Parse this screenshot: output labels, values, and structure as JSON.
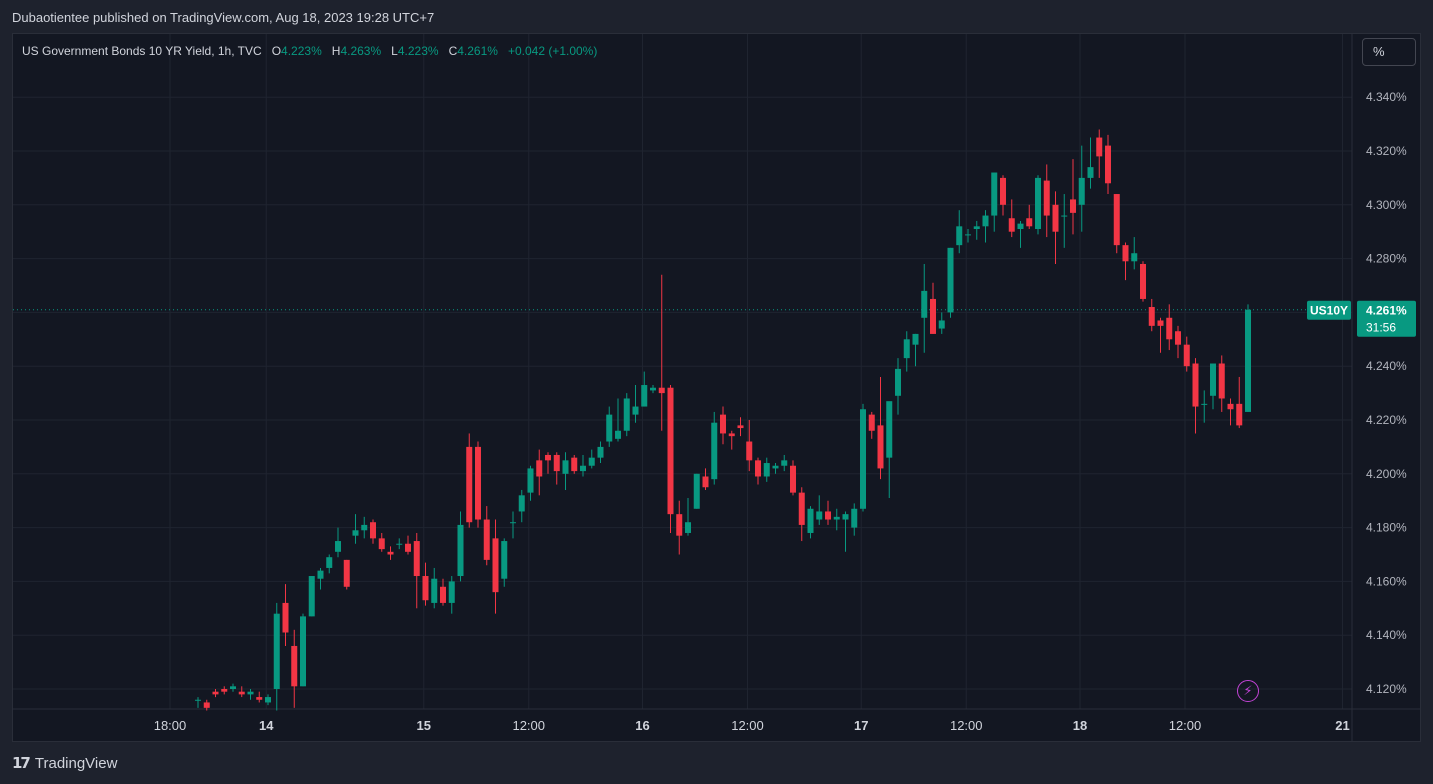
{
  "header": {
    "published": "Dubaotientee published on TradingView.com, Aug 18, 2023 19:28 UTC+7"
  },
  "legend": {
    "symbol_desc": "US Government Bonds 10 YR Yield, 1h, TVC",
    "o_label": "O",
    "o_value": "4.223%",
    "h_label": "H",
    "h_value": "4.263%",
    "l_label": "L",
    "l_value": "4.223%",
    "c_label": "C",
    "c_value": "4.261%",
    "change": "+0.042 (+1.00%)"
  },
  "unit_button": "%",
  "price_tag": {
    "symbol": "US10Y",
    "price": "4.261%",
    "countdown": "31:56"
  },
  "footer": {
    "brand": "TradingView"
  },
  "colors": {
    "up": "#089981",
    "down": "#f23645",
    "background": "#131722",
    "grid": "#1f2430"
  },
  "chart_data": {
    "type": "candlestick",
    "ylim": [
      4.11,
      4.35
    ],
    "y_ticks": [
      "4.120%",
      "4.140%",
      "4.160%",
      "4.180%",
      "4.200%",
      "4.220%",
      "4.240%",
      "4.260%",
      "4.280%",
      "4.300%",
      "4.320%",
      "4.340%"
    ],
    "x_ticks": [
      {
        "label": "18:00",
        "bold": false,
        "idx": 8
      },
      {
        "label": "14",
        "bold": true,
        "idx": 19
      },
      {
        "label": "15",
        "bold": true,
        "idx": 37
      },
      {
        "label": "12:00",
        "bold": false,
        "idx": 49
      },
      {
        "label": "16",
        "bold": true,
        "idx": 62
      },
      {
        "label": "12:00",
        "bold": false,
        "idx": 74
      },
      {
        "label": "17",
        "bold": true,
        "idx": 87
      },
      {
        "label": "12:00",
        "bold": false,
        "idx": 99
      },
      {
        "label": "18",
        "bold": true,
        "idx": 112
      },
      {
        "label": "12:00",
        "bold": false,
        "idx": 124
      },
      {
        "label": "21",
        "bold": true,
        "idx": 142
      }
    ],
    "last_price": 4.261,
    "candles": [
      [
        4.116,
        4.117,
        4.113,
        4.116
      ],
      [
        4.115,
        4.116,
        4.112,
        4.113
      ],
      [
        4.119,
        4.12,
        4.117,
        4.118
      ],
      [
        4.12,
        4.121,
        4.118,
        4.119
      ],
      [
        4.12,
        4.122,
        4.119,
        4.121
      ],
      [
        4.119,
        4.121,
        4.117,
        4.118
      ],
      [
        4.118,
        4.12,
        4.116,
        4.119
      ],
      [
        4.117,
        4.119,
        4.115,
        4.116
      ],
      [
        4.115,
        4.118,
        4.114,
        4.117
      ],
      [
        4.12,
        4.152,
        4.112,
        4.148
      ],
      [
        4.152,
        4.159,
        4.136,
        4.141
      ],
      [
        4.136,
        4.142,
        4.113,
        4.121
      ],
      [
        4.121,
        4.148,
        4.121,
        4.147
      ],
      [
        4.147,
        4.162,
        4.147,
        4.162
      ],
      [
        4.161,
        4.165,
        4.157,
        4.164
      ],
      [
        4.165,
        4.17,
        4.163,
        4.169
      ],
      [
        4.171,
        4.18,
        4.169,
        4.175
      ],
      [
        4.168,
        4.168,
        4.157,
        4.158
      ],
      [
        4.177,
        4.185,
        4.174,
        4.179
      ],
      [
        4.179,
        4.184,
        4.176,
        4.181
      ],
      [
        4.182,
        4.183,
        4.174,
        4.176
      ],
      [
        4.176,
        4.178,
        4.171,
        4.172
      ],
      [
        4.171,
        4.173,
        4.168,
        4.17
      ],
      [
        4.174,
        4.176,
        4.172,
        4.174
      ],
      [
        4.174,
        4.177,
        4.17,
        4.171
      ],
      [
        4.175,
        4.178,
        4.15,
        4.162
      ],
      [
        4.162,
        4.167,
        4.151,
        4.153
      ],
      [
        4.152,
        4.165,
        4.15,
        4.161
      ],
      [
        4.158,
        4.161,
        4.151,
        4.152
      ],
      [
        4.152,
        4.162,
        4.148,
        4.16
      ],
      [
        4.162,
        4.186,
        4.16,
        4.181
      ],
      [
        4.21,
        4.215,
        4.18,
        4.182
      ],
      [
        4.21,
        4.212,
        4.18,
        4.183
      ],
      [
        4.183,
        4.188,
        4.166,
        4.168
      ],
      [
        4.176,
        4.183,
        4.148,
        4.156
      ],
      [
        4.161,
        4.176,
        4.158,
        4.175
      ],
      [
        4.182,
        4.186,
        4.176,
        4.182
      ],
      [
        4.186,
        4.194,
        4.182,
        4.192
      ],
      [
        4.193,
        4.203,
        4.19,
        4.202
      ],
      [
        4.205,
        4.209,
        4.192,
        4.199
      ],
      [
        4.207,
        4.208,
        4.2,
        4.205
      ],
      [
        4.207,
        4.208,
        4.196,
        4.201
      ],
      [
        4.2,
        4.208,
        4.194,
        4.205
      ],
      [
        4.206,
        4.207,
        4.2,
        4.201
      ],
      [
        4.201,
        4.207,
        4.199,
        4.203
      ],
      [
        4.203,
        4.209,
        4.202,
        4.206
      ],
      [
        4.206,
        4.212,
        4.204,
        4.21
      ],
      [
        4.212,
        4.225,
        4.21,
        4.222
      ],
      [
        4.213,
        4.228,
        4.212,
        4.216
      ],
      [
        4.216,
        4.23,
        4.214,
        4.228
      ],
      [
        4.222,
        4.233,
        4.219,
        4.225
      ],
      [
        4.225,
        4.238,
        4.225,
        4.233
      ],
      [
        4.231,
        4.233,
        4.23,
        4.232
      ],
      [
        4.232,
        4.274,
        4.216,
        4.23
      ],
      [
        4.232,
        4.233,
        4.178,
        4.185
      ],
      [
        4.185,
        4.19,
        4.17,
        4.177
      ],
      [
        4.178,
        4.191,
        4.177,
        4.182
      ],
      [
        4.187,
        4.2,
        4.187,
        4.2
      ],
      [
        4.199,
        4.202,
        4.194,
        4.195
      ],
      [
        4.198,
        4.223,
        4.196,
        4.219
      ],
      [
        4.222,
        4.225,
        4.211,
        4.215
      ],
      [
        4.215,
        4.216,
        4.209,
        4.214
      ],
      [
        4.218,
        4.221,
        4.214,
        4.217
      ],
      [
        4.212,
        4.22,
        4.201,
        4.205
      ],
      [
        4.205,
        4.206,
        4.196,
        4.199
      ],
      [
        4.199,
        4.206,
        4.197,
        4.204
      ],
      [
        4.202,
        4.204,
        4.2,
        4.203
      ],
      [
        4.203,
        4.207,
        4.201,
        4.205
      ],
      [
        4.203,
        4.205,
        4.192,
        4.193
      ],
      [
        4.193,
        4.195,
        4.175,
        4.181
      ],
      [
        4.178,
        4.188,
        4.176,
        4.187
      ],
      [
        4.183,
        4.192,
        4.181,
        4.186
      ],
      [
        4.186,
        4.19,
        4.181,
        4.183
      ],
      [
        4.183,
        4.187,
        4.179,
        4.184
      ],
      [
        4.183,
        4.186,
        4.171,
        4.185
      ],
      [
        4.18,
        4.189,
        4.177,
        4.187
      ],
      [
        4.187,
        4.226,
        4.186,
        4.224
      ],
      [
        4.222,
        4.223,
        4.213,
        4.216
      ],
      [
        4.218,
        4.236,
        4.198,
        4.202
      ],
      [
        4.206,
        4.226,
        4.191,
        4.227
      ],
      [
        4.229,
        4.243,
        4.222,
        4.239
      ],
      [
        4.243,
        4.253,
        4.238,
        4.25
      ],
      [
        4.248,
        4.252,
        4.24,
        4.252
      ],
      [
        4.258,
        4.278,
        4.245,
        4.268
      ],
      [
        4.265,
        4.271,
        4.252,
        4.252
      ],
      [
        4.254,
        4.26,
        4.252,
        4.257
      ],
      [
        4.26,
        4.284,
        4.258,
        4.284
      ],
      [
        4.285,
        4.298,
        4.282,
        4.292
      ],
      [
        4.289,
        4.291,
        4.286,
        4.289
      ],
      [
        4.291,
        4.294,
        4.287,
        4.292
      ],
      [
        4.292,
        4.298,
        4.286,
        4.296
      ],
      [
        4.296,
        4.312,
        4.29,
        4.312
      ],
      [
        4.31,
        4.311,
        4.296,
        4.3
      ],
      [
        4.295,
        4.302,
        4.288,
        4.29
      ],
      [
        4.291,
        4.294,
        4.284,
        4.293
      ],
      [
        4.295,
        4.3,
        4.291,
        4.292
      ],
      [
        4.291,
        4.311,
        4.289,
        4.31
      ],
      [
        4.309,
        4.315,
        4.288,
        4.296
      ],
      [
        4.3,
        4.305,
        4.278,
        4.29
      ],
      [
        4.296,
        4.304,
        4.284,
        4.296
      ],
      [
        4.302,
        4.317,
        4.289,
        4.297
      ],
      [
        4.3,
        4.322,
        4.29,
        4.31
      ],
      [
        4.31,
        4.325,
        4.306,
        4.314
      ],
      [
        4.325,
        4.328,
        4.31,
        4.318
      ],
      [
        4.322,
        4.326,
        4.304,
        4.308
      ],
      [
        4.304,
        4.304,
        4.282,
        4.285
      ],
      [
        4.285,
        4.286,
        4.272,
        4.279
      ],
      [
        4.279,
        4.288,
        4.276,
        4.282
      ],
      [
        4.278,
        4.279,
        4.264,
        4.265
      ],
      [
        4.262,
        4.265,
        4.253,
        4.255
      ],
      [
        4.257,
        4.258,
        4.245,
        4.255
      ],
      [
        4.258,
        4.263,
        4.246,
        4.25
      ],
      [
        4.253,
        4.255,
        4.243,
        4.248
      ],
      [
        4.248,
        4.251,
        4.238,
        4.24
      ],
      [
        4.241,
        4.243,
        4.215,
        4.225
      ],
      [
        4.226,
        4.231,
        4.219,
        4.226
      ],
      [
        4.229,
        4.241,
        4.224,
        4.241
      ],
      [
        4.241,
        4.244,
        4.223,
        4.228
      ],
      [
        4.226,
        4.228,
        4.218,
        4.224
      ],
      [
        4.226,
        4.236,
        4.217,
        4.218
      ],
      [
        4.223,
        4.263,
        4.223,
        4.261
      ]
    ]
  }
}
